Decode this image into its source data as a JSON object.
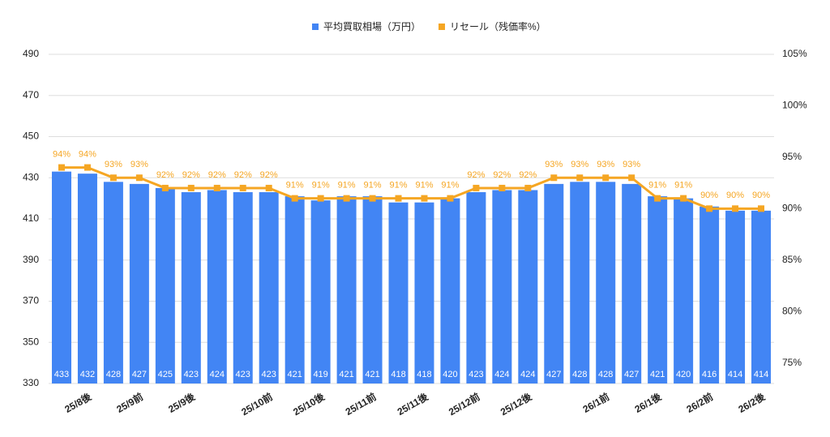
{
  "chart_data": {
    "type": "bar-line",
    "categories": [
      null,
      "25/8後",
      null,
      "25/9前",
      null,
      "25/9後",
      null,
      null,
      "25/10前",
      null,
      "25/10後",
      null,
      "25/11前",
      null,
      "25/11後",
      null,
      "25/12前",
      null,
      "25/12後",
      null,
      null,
      "26/1前",
      null,
      "26/1後",
      null,
      "26/2前",
      null,
      "26/2後"
    ],
    "series": [
      {
        "name": "平均買取相場（万円）",
        "type": "bar",
        "color": "#4285f4",
        "values": [
          433,
          432,
          428,
          427,
          425,
          423,
          424,
          423,
          423,
          421,
          419,
          421,
          421,
          418,
          418,
          420,
          423,
          424,
          424,
          427,
          428,
          428,
          427,
          421,
          420,
          416,
          414,
          414
        ]
      },
      {
        "name": "リセール（残価率%）",
        "type": "line",
        "axis": "y2",
        "color": "#f5a623",
        "values": [
          94,
          94,
          93,
          93,
          92,
          92,
          92,
          92,
          92,
          91,
          91,
          91,
          91,
          91,
          91,
          91,
          92,
          92,
          92,
          93,
          93,
          93,
          93,
          91,
          91,
          90,
          90,
          90
        ],
        "value_labels": [
          "94%",
          "94%",
          "93%",
          "93%",
          "92%",
          "92%",
          "92%",
          "92%",
          "92%",
          "91%",
          "91%",
          "91%",
          "91%",
          "91%",
          "91%",
          "91%",
          "92%",
          "92%",
          "92%",
          "93%",
          "93%",
          "93%",
          "93%",
          "91%",
          "91%",
          "90%",
          "90%",
          "90%"
        ]
      }
    ],
    "ylim": [
      330,
      490
    ],
    "yticks": [
      330,
      350,
      370,
      390,
      410,
      430,
      450,
      470,
      490
    ],
    "y2lim": [
      73,
      105
    ],
    "y2ticks": [
      {
        "value": 75,
        "label": "75%"
      },
      {
        "value": 80,
        "label": "80%"
      },
      {
        "value": 85,
        "label": "85%"
      },
      {
        "value": 90,
        "label": "90%"
      },
      {
        "value": 95,
        "label": "95%"
      },
      {
        "value": 100,
        "label": "100%"
      },
      {
        "value": 105,
        "label": "105%"
      }
    ],
    "grid": true,
    "legend": "top"
  }
}
